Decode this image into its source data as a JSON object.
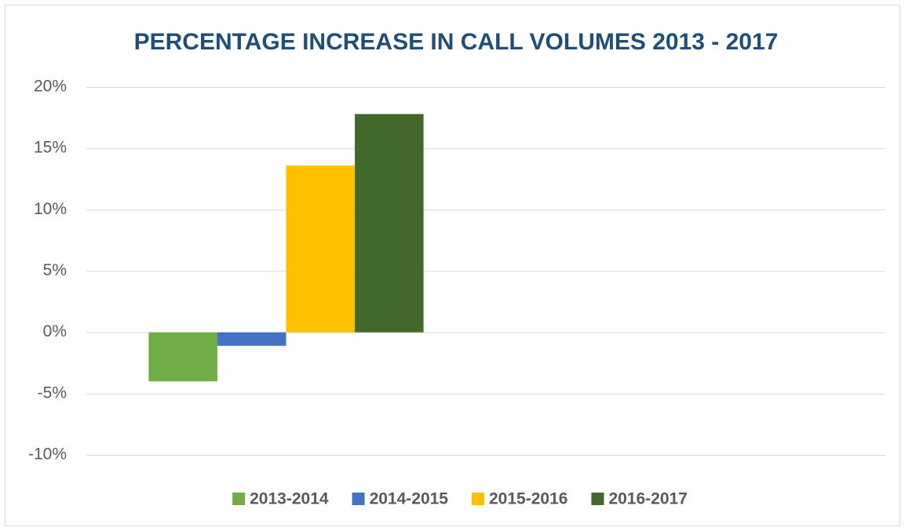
{
  "chart_data": {
    "type": "bar",
    "title": "PERCENTAGE INCREASE IN CALL VOLUMES 2013 - 2017",
    "categories": [
      null,
      null
    ],
    "series": [
      {
        "name": "2013-2014",
        "color": "#70ad47",
        "values": [
          -4.0,
          null
        ]
      },
      {
        "name": "2014-2015",
        "color": "#4472c4",
        "values": [
          -1.1,
          null
        ]
      },
      {
        "name": "2015-2016",
        "color": "#ffc000",
        "values": [
          13.6,
          null
        ]
      },
      {
        "name": "2016-2017",
        "color": "#43682b",
        "values": [
          17.8,
          null
        ]
      }
    ],
    "ylim": [
      -10,
      20
    ],
    "yticks": [
      {
        "value": -10,
        "label": "-10%"
      },
      {
        "value": -5,
        "label": "-5%"
      },
      {
        "value": 0,
        "label": "0%"
      },
      {
        "value": 5,
        "label": "5%"
      },
      {
        "value": 10,
        "label": "10%"
      },
      {
        "value": 15,
        "label": "15%"
      },
      {
        "value": 20,
        "label": "20%"
      }
    ],
    "grid": true,
    "legend": "bottom"
  }
}
